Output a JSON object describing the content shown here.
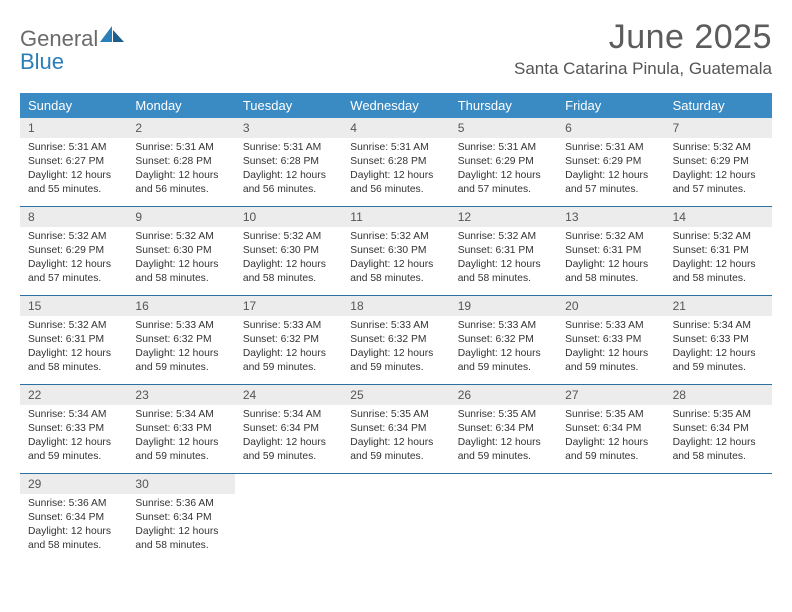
{
  "logo": {
    "general": "General",
    "blue": "Blue"
  },
  "title": "June 2025",
  "location": "Santa Catarina Pinula, Guatemala",
  "colors": {
    "header_bg": "#3a8ac4",
    "header_text": "#ffffff",
    "daynum_bg": "#ececec",
    "week_border": "#2b6fa3",
    "logo_gray": "#6a6a6a",
    "logo_blue": "#2a7fb8",
    "title_gray": "#5c5c5c"
  },
  "day_names": [
    "Sunday",
    "Monday",
    "Tuesday",
    "Wednesday",
    "Thursday",
    "Friday",
    "Saturday"
  ],
  "weeks": [
    [
      {
        "n": "1",
        "sr": "5:31 AM",
        "ss": "6:27 PM",
        "d1": "Daylight: 12 hours",
        "d2": "and 55 minutes."
      },
      {
        "n": "2",
        "sr": "5:31 AM",
        "ss": "6:28 PM",
        "d1": "Daylight: 12 hours",
        "d2": "and 56 minutes."
      },
      {
        "n": "3",
        "sr": "5:31 AM",
        "ss": "6:28 PM",
        "d1": "Daylight: 12 hours",
        "d2": "and 56 minutes."
      },
      {
        "n": "4",
        "sr": "5:31 AM",
        "ss": "6:28 PM",
        "d1": "Daylight: 12 hours",
        "d2": "and 56 minutes."
      },
      {
        "n": "5",
        "sr": "5:31 AM",
        "ss": "6:29 PM",
        "d1": "Daylight: 12 hours",
        "d2": "and 57 minutes."
      },
      {
        "n": "6",
        "sr": "5:31 AM",
        "ss": "6:29 PM",
        "d1": "Daylight: 12 hours",
        "d2": "and 57 minutes."
      },
      {
        "n": "7",
        "sr": "5:32 AM",
        "ss": "6:29 PM",
        "d1": "Daylight: 12 hours",
        "d2": "and 57 minutes."
      }
    ],
    [
      {
        "n": "8",
        "sr": "5:32 AM",
        "ss": "6:29 PM",
        "d1": "Daylight: 12 hours",
        "d2": "and 57 minutes."
      },
      {
        "n": "9",
        "sr": "5:32 AM",
        "ss": "6:30 PM",
        "d1": "Daylight: 12 hours",
        "d2": "and 58 minutes."
      },
      {
        "n": "10",
        "sr": "5:32 AM",
        "ss": "6:30 PM",
        "d1": "Daylight: 12 hours",
        "d2": "and 58 minutes."
      },
      {
        "n": "11",
        "sr": "5:32 AM",
        "ss": "6:30 PM",
        "d1": "Daylight: 12 hours",
        "d2": "and 58 minutes."
      },
      {
        "n": "12",
        "sr": "5:32 AM",
        "ss": "6:31 PM",
        "d1": "Daylight: 12 hours",
        "d2": "and 58 minutes."
      },
      {
        "n": "13",
        "sr": "5:32 AM",
        "ss": "6:31 PM",
        "d1": "Daylight: 12 hours",
        "d2": "and 58 minutes."
      },
      {
        "n": "14",
        "sr": "5:32 AM",
        "ss": "6:31 PM",
        "d1": "Daylight: 12 hours",
        "d2": "and 58 minutes."
      }
    ],
    [
      {
        "n": "15",
        "sr": "5:32 AM",
        "ss": "6:31 PM",
        "d1": "Daylight: 12 hours",
        "d2": "and 58 minutes."
      },
      {
        "n": "16",
        "sr": "5:33 AM",
        "ss": "6:32 PM",
        "d1": "Daylight: 12 hours",
        "d2": "and 59 minutes."
      },
      {
        "n": "17",
        "sr": "5:33 AM",
        "ss": "6:32 PM",
        "d1": "Daylight: 12 hours",
        "d2": "and 59 minutes."
      },
      {
        "n": "18",
        "sr": "5:33 AM",
        "ss": "6:32 PM",
        "d1": "Daylight: 12 hours",
        "d2": "and 59 minutes."
      },
      {
        "n": "19",
        "sr": "5:33 AM",
        "ss": "6:32 PM",
        "d1": "Daylight: 12 hours",
        "d2": "and 59 minutes."
      },
      {
        "n": "20",
        "sr": "5:33 AM",
        "ss": "6:33 PM",
        "d1": "Daylight: 12 hours",
        "d2": "and 59 minutes."
      },
      {
        "n": "21",
        "sr": "5:34 AM",
        "ss": "6:33 PM",
        "d1": "Daylight: 12 hours",
        "d2": "and 59 minutes."
      }
    ],
    [
      {
        "n": "22",
        "sr": "5:34 AM",
        "ss": "6:33 PM",
        "d1": "Daylight: 12 hours",
        "d2": "and 59 minutes."
      },
      {
        "n": "23",
        "sr": "5:34 AM",
        "ss": "6:33 PM",
        "d1": "Daylight: 12 hours",
        "d2": "and 59 minutes."
      },
      {
        "n": "24",
        "sr": "5:34 AM",
        "ss": "6:34 PM",
        "d1": "Daylight: 12 hours",
        "d2": "and 59 minutes."
      },
      {
        "n": "25",
        "sr": "5:35 AM",
        "ss": "6:34 PM",
        "d1": "Daylight: 12 hours",
        "d2": "and 59 minutes."
      },
      {
        "n": "26",
        "sr": "5:35 AM",
        "ss": "6:34 PM",
        "d1": "Daylight: 12 hours",
        "d2": "and 59 minutes."
      },
      {
        "n": "27",
        "sr": "5:35 AM",
        "ss": "6:34 PM",
        "d1": "Daylight: 12 hours",
        "d2": "and 59 minutes."
      },
      {
        "n": "28",
        "sr": "5:35 AM",
        "ss": "6:34 PM",
        "d1": "Daylight: 12 hours",
        "d2": "and 58 minutes."
      }
    ],
    [
      {
        "n": "29",
        "sr": "5:36 AM",
        "ss": "6:34 PM",
        "d1": "Daylight: 12 hours",
        "d2": "and 58 minutes."
      },
      {
        "n": "30",
        "sr": "5:36 AM",
        "ss": "6:34 PM",
        "d1": "Daylight: 12 hours",
        "d2": "and 58 minutes."
      },
      null,
      null,
      null,
      null,
      null
    ]
  ],
  "labels": {
    "sunrise": "Sunrise: ",
    "sunset": "Sunset: "
  }
}
